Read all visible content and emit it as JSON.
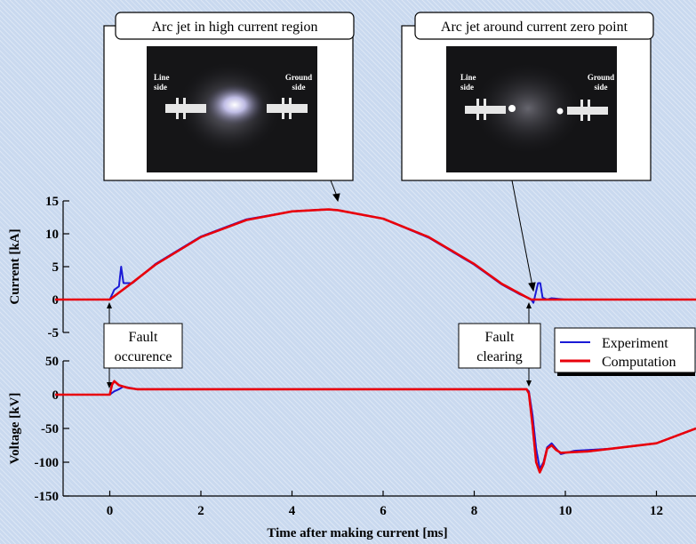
{
  "chart_data": [
    {
      "type": "line",
      "ylabel": "Current [kA]",
      "ylim": [
        -5,
        15
      ],
      "yticks": [
        "15",
        "10",
        "5",
        "0",
        "-5"
      ],
      "series": [
        {
          "name": "Experiment",
          "color": "#1a1ad6",
          "x": [
            -1.2,
            0.0,
            0.1,
            0.2,
            0.25,
            0.3,
            0.4,
            0.5,
            1,
            2,
            3,
            4,
            4.7,
            5,
            6,
            7,
            8,
            8.6,
            9.0,
            9.25,
            9.3,
            9.4,
            9.45,
            9.5,
            9.6,
            9.7,
            10.0,
            13.0
          ],
          "y": [
            0,
            0,
            1.5,
            2.0,
            5.0,
            2.5,
            2.5,
            2.5,
            5.4,
            9.6,
            12.2,
            13.4,
            13.7,
            13.6,
            12.3,
            9.4,
            5.3,
            2.3,
            0.8,
            0,
            -0.5,
            2.5,
            2.5,
            0.3,
            0,
            0.2,
            0,
            0
          ]
        },
        {
          "name": "Computation",
          "color": "#e8000b",
          "x": [
            -1.2,
            0.0,
            0.5,
            1,
            2,
            3,
            4,
            4.8,
            5,
            6,
            7,
            8,
            8.6,
            9.0,
            9.25,
            10.0,
            13.0
          ],
          "y": [
            0,
            0,
            2.6,
            5.3,
            9.5,
            12.1,
            13.4,
            13.7,
            13.6,
            12.3,
            9.5,
            5.4,
            2.4,
            0.9,
            0,
            0,
            0
          ]
        }
      ]
    },
    {
      "type": "line",
      "ylabel": "Voltage [kV]",
      "xlabel": "Time after making current [ms]",
      "ylim": [
        -150,
        50
      ],
      "xlim": [
        -1.2,
        13
      ],
      "yticks": [
        "50",
        "0",
        "-50",
        "-100",
        "-150"
      ],
      "xticks": [
        "0",
        "2",
        "4",
        "6",
        "8",
        "10",
        "12"
      ],
      "series": [
        {
          "name": "Experiment",
          "color": "#1a1ad6",
          "x": [
            -1.2,
            0.0,
            0.1,
            0.2,
            0.3,
            0.6,
            1,
            9.15,
            9.2,
            9.28,
            9.36,
            9.44,
            9.52,
            9.6,
            9.7,
            9.8,
            9.9,
            10.2,
            10.5,
            11,
            12,
            13
          ],
          "y": [
            0,
            0,
            5,
            8,
            12,
            8,
            8,
            8,
            5,
            -30,
            -80,
            -110,
            -100,
            -78,
            -72,
            -80,
            -88,
            -83,
            -82,
            -80,
            -72,
            -50
          ]
        },
        {
          "name": "Computation",
          "color": "#e8000b",
          "x": [
            -1.2,
            0.0,
            0.05,
            0.1,
            0.2,
            0.4,
            0.6,
            1,
            9.15,
            9.2,
            9.28,
            9.36,
            9.44,
            9.52,
            9.6,
            9.7,
            9.8,
            9.9,
            10.2,
            10.5,
            11,
            12,
            13
          ],
          "y": [
            0,
            0,
            15,
            20,
            14,
            10,
            8,
            8,
            8,
            2,
            -45,
            -100,
            -115,
            -103,
            -80,
            -75,
            -82,
            -86,
            -85,
            -84,
            -80,
            -72,
            -50
          ]
        }
      ]
    }
  ],
  "images": [
    {
      "caption": "Arc jet in high current region",
      "left_label": [
        "Line",
        "side"
      ],
      "right_label": [
        "Ground",
        "side"
      ]
    },
    {
      "caption": "Arc jet around current zero point",
      "left_label": [
        "Line",
        "side"
      ],
      "right_label": [
        "Ground",
        "side"
      ]
    }
  ],
  "annotations": [
    {
      "lines": [
        "Fault",
        "occurence"
      ]
    },
    {
      "lines": [
        "Fault",
        "clearing"
      ]
    }
  ],
  "legend": [
    {
      "label": "Experiment",
      "color": "#1a1ad6"
    },
    {
      "label": "Computation",
      "color": "#e8000b"
    }
  ]
}
